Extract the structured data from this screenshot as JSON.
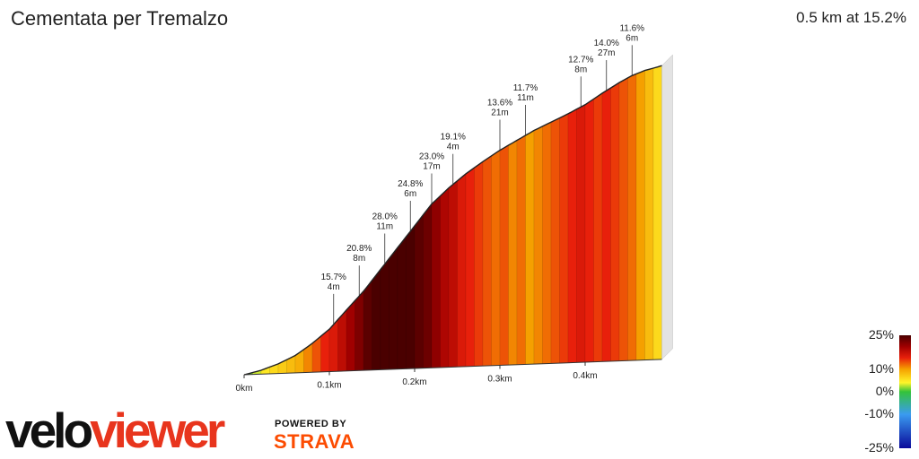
{
  "header": {
    "title": "Cementata per Tremalzo",
    "summary": "0.5 km at 15.2%"
  },
  "branding": {
    "logo_velo": "velo",
    "logo_viewer": "viewer",
    "powered_by": "POWERED BY",
    "strava": "STRAVA"
  },
  "legend": {
    "ticks": [
      "25%",
      "10%",
      "0%",
      "-10%",
      "-25%"
    ],
    "tick_values": [
      25,
      10,
      0,
      -10,
      -25
    ],
    "stops": [
      {
        "value": -25,
        "color": "#0a0a9a"
      },
      {
        "value": -10,
        "color": "#3a9bf0"
      },
      {
        "value": 0,
        "color": "#33c33a"
      },
      {
        "value": 4,
        "color": "#fff52a"
      },
      {
        "value": 10,
        "color": "#f5a000"
      },
      {
        "value": 15,
        "color": "#e8200b"
      },
      {
        "value": 20,
        "color": "#a00000"
      },
      {
        "value": 25,
        "color": "#4a0000"
      }
    ]
  },
  "chart_data": {
    "type": "area",
    "title": "Cementata per Tremalzo",
    "x_unit": "km",
    "y_unit": "m",
    "x_ticks": [
      {
        "value": 0,
        "label": "0km"
      },
      {
        "value": 0.1,
        "label": "0.1km"
      },
      {
        "value": 0.2,
        "label": "0.2km"
      },
      {
        "value": 0.3,
        "label": "0.3km"
      },
      {
        "value": 0.4,
        "label": "0.4km"
      }
    ],
    "profile_x": [
      0,
      0.02,
      0.04,
      0.06,
      0.08,
      0.1,
      0.12,
      0.14,
      0.16,
      0.18,
      0.2,
      0.22,
      0.24,
      0.26,
      0.28,
      0.3,
      0.32,
      0.34,
      0.36,
      0.38,
      0.4,
      0.42,
      0.44,
      0.455,
      0.47,
      0.485,
      0.49
    ],
    "profile_y": [
      0,
      1,
      2.5,
      4.5,
      7.5,
      11,
      15.8,
      20.5,
      26,
      31.5,
      37,
      42.5,
      46.5,
      50,
      53,
      55.8,
      58.2,
      60.6,
      62.6,
      64.6,
      66.8,
      69.6,
      72.2,
      73.9,
      75.1,
      75.9,
      76.2
    ],
    "gradient_x": [
      0,
      0.01,
      0.02,
      0.03,
      0.04,
      0.05,
      0.06,
      0.07,
      0.08,
      0.09,
      0.1,
      0.11,
      0.12,
      0.13,
      0.14,
      0.15,
      0.16,
      0.17,
      0.18,
      0.19,
      0.2,
      0.21,
      0.22,
      0.23,
      0.24,
      0.25,
      0.26,
      0.27,
      0.28,
      0.29,
      0.3,
      0.31,
      0.32,
      0.33,
      0.34,
      0.35,
      0.36,
      0.37,
      0.38,
      0.39,
      0.4,
      0.41,
      0.42,
      0.43,
      0.44,
      0.45,
      0.46,
      0.47,
      0.48,
      0.49
    ],
    "gradient": [
      1,
      3,
      5,
      6,
      7,
      8,
      9,
      11,
      13,
      15,
      16,
      18,
      20,
      22,
      24,
      26,
      28,
      27,
      26,
      25,
      24,
      23,
      21,
      19,
      18,
      16,
      15,
      14,
      13,
      12,
      13,
      11,
      12,
      10,
      11,
      12,
      13,
      14,
      15,
      16,
      15,
      14,
      15,
      14,
      13,
      12,
      10,
      8,
      6,
      5
    ],
    "annotations": [
      {
        "x": 0.105,
        "grade": "15.7%",
        "len": "4m"
      },
      {
        "x": 0.135,
        "grade": "20.8%",
        "len": "8m"
      },
      {
        "x": 0.165,
        "grade": "28.0%",
        "len": "11m"
      },
      {
        "x": 0.195,
        "grade": "24.8%",
        "len": "6m"
      },
      {
        "x": 0.22,
        "grade": "23.0%",
        "len": "17m"
      },
      {
        "x": 0.245,
        "grade": "19.1%",
        "len": "4m"
      },
      {
        "x": 0.3,
        "grade": "13.6%",
        "len": "21m"
      },
      {
        "x": 0.33,
        "grade": "11.7%",
        "len": "11m"
      },
      {
        "x": 0.395,
        "grade": "12.7%",
        "len": "8m"
      },
      {
        "x": 0.425,
        "grade": "14.0%",
        "len": "27m"
      },
      {
        "x": 0.455,
        "grade": "11.6%",
        "len": "6m"
      }
    ]
  }
}
